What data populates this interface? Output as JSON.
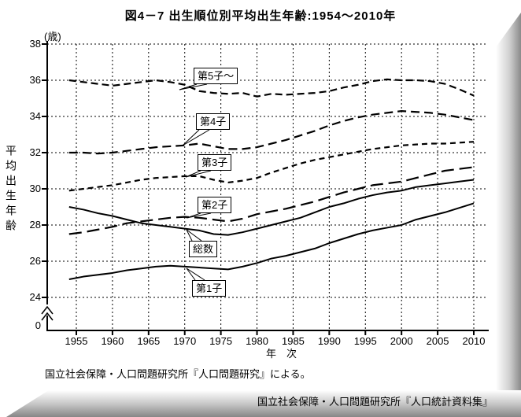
{
  "title": "図4－7 出生順位別平均出生年齢:1954～2010年",
  "y_axis": {
    "unit_label": "(歳)",
    "axis_title": "平均出生年齢",
    "tick_labels": [
      "38",
      "36",
      "34",
      "32",
      "30",
      "28",
      "26",
      "24"
    ],
    "break_zero_label": "0",
    "range_shown": [
      24,
      38
    ]
  },
  "x_axis": {
    "title": "年　次",
    "tick_labels": [
      "1955",
      "1960",
      "1965",
      "1970",
      "1975",
      "1980",
      "1985",
      "1990",
      "1995",
      "2000",
      "2005",
      "2010"
    ]
  },
  "callouts": [
    {
      "label": "第5子～"
    },
    {
      "label": "第4子"
    },
    {
      "label": "第3子"
    },
    {
      "label": "第2子"
    },
    {
      "label": "総数"
    },
    {
      "label": "第1子"
    }
  ],
  "source_note": "国立社会保障・人口問題研究所『人口問題研究』による。",
  "credit": "国立社会保障・人口問題研究所『人口統計資料集』",
  "colors": {
    "line": "#000000",
    "background": "#ffffff",
    "grid": "#000000",
    "shadow": "#8a8a8a"
  },
  "chart_data": {
    "type": "line",
    "title": "図4－7 出生順位別平均出生年齢:1954～2010年",
    "xlabel": "年次",
    "ylabel": "平均出生年齢(歳)",
    "ylim": [
      24,
      38
    ],
    "xlim": [
      1954,
      2010
    ],
    "grid": true,
    "axis_break_to_zero": true,
    "legend": "callout-labels-on-lines",
    "x": [
      1954,
      1956,
      1958,
      1960,
      1962,
      1964,
      1966,
      1968,
      1970,
      1972,
      1974,
      1976,
      1978,
      1980,
      1982,
      1984,
      1986,
      1988,
      1990,
      1992,
      1994,
      1996,
      1998,
      2000,
      2002,
      2004,
      2006,
      2008,
      2010
    ],
    "series": [
      {
        "name": "第5子～",
        "line_style": "dashed",
        "values": [
          36.0,
          35.9,
          35.8,
          35.7,
          35.8,
          35.9,
          36.0,
          35.9,
          35.75,
          35.4,
          35.3,
          35.25,
          35.3,
          35.1,
          35.25,
          35.2,
          35.25,
          35.3,
          35.4,
          35.6,
          35.75,
          35.95,
          36.05,
          36.0,
          36.0,
          35.95,
          35.8,
          35.5,
          35.15
        ]
      },
      {
        "name": "第4子",
        "line_style": "dashed",
        "values": [
          32.0,
          32.0,
          31.95,
          32.0,
          32.1,
          32.2,
          32.3,
          32.35,
          32.4,
          32.5,
          32.35,
          32.2,
          32.2,
          32.3,
          32.5,
          32.7,
          32.95,
          33.2,
          33.5,
          33.75,
          33.95,
          34.1,
          34.2,
          34.3,
          34.25,
          34.2,
          34.1,
          33.95,
          33.8
        ]
      },
      {
        "name": "第3子",
        "line_style": "dashed",
        "values": [
          29.9,
          30.0,
          30.1,
          30.2,
          30.35,
          30.5,
          30.6,
          30.65,
          30.7,
          30.7,
          30.5,
          30.35,
          30.45,
          30.6,
          30.9,
          31.15,
          31.4,
          31.6,
          31.75,
          31.9,
          32.05,
          32.2,
          32.3,
          32.4,
          32.45,
          32.5,
          32.5,
          32.55,
          32.6
        ]
      },
      {
        "name": "第2子",
        "line_style": "long-dashed",
        "values": [
          27.5,
          27.6,
          27.75,
          27.9,
          28.1,
          28.2,
          28.3,
          28.4,
          28.45,
          28.4,
          28.3,
          28.2,
          28.35,
          28.6,
          28.75,
          28.9,
          29.1,
          29.3,
          29.55,
          29.8,
          30.0,
          30.2,
          30.3,
          30.4,
          30.6,
          30.8,
          31.0,
          31.1,
          31.2
        ]
      },
      {
        "name": "総数",
        "line_style": "solid",
        "values": [
          29.0,
          28.85,
          28.65,
          28.5,
          28.3,
          28.1,
          28.0,
          27.9,
          27.8,
          27.7,
          27.5,
          27.45,
          27.6,
          27.8,
          28.0,
          28.2,
          28.4,
          28.7,
          29.0,
          29.2,
          29.45,
          29.65,
          29.8,
          29.9,
          30.1,
          30.2,
          30.3,
          30.4,
          30.5
        ]
      },
      {
        "name": "第1子",
        "line_style": "solid",
        "values": [
          25.0,
          25.15,
          25.25,
          25.35,
          25.5,
          25.6,
          25.7,
          25.75,
          25.7,
          25.65,
          25.6,
          25.55,
          25.7,
          25.9,
          26.15,
          26.3,
          26.5,
          26.7,
          27.0,
          27.25,
          27.5,
          27.7,
          27.85,
          28.0,
          28.3,
          28.5,
          28.7,
          28.95,
          29.2
        ]
      }
    ]
  }
}
